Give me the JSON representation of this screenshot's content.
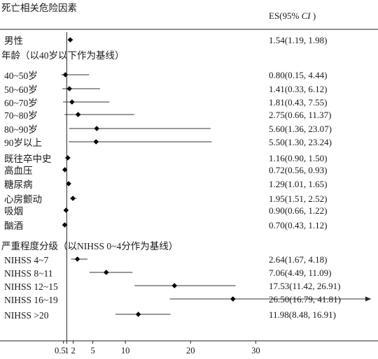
{
  "chart_data": {
    "type": "forest",
    "title": "死亡相关危险因素",
    "effect_header": {
      "prefix": "ES(95% ",
      "italic": "CI",
      "suffix": " )"
    },
    "reference_value": 1,
    "xlim": [
      0,
      32
    ],
    "x_ticks": [
      {
        "value": 0.5,
        "label": "0.5"
      },
      {
        "value": 1,
        "label": "1"
      },
      {
        "value": 2,
        "label": "2"
      },
      {
        "value": 5,
        "label": "5"
      },
      {
        "value": 10,
        "label": "10"
      },
      {
        "value": 20,
        "label": "20"
      },
      {
        "value": 30,
        "label": "30"
      }
    ],
    "rows": [
      {
        "kind": "item",
        "label": "男性",
        "es": 1.54,
        "lo": 1.19,
        "hi": 1.98,
        "text": "1.54(1.19, 1.98)"
      },
      {
        "kind": "header",
        "label": "年龄（以40岁以下作为基线）"
      },
      {
        "kind": "item",
        "label": "40~50岁",
        "es": 0.8,
        "lo": 0.15,
        "hi": 4.44,
        "text": "0.80(0.15, 4.44)"
      },
      {
        "kind": "item",
        "label": "50~60岁",
        "es": 1.41,
        "lo": 0.33,
        "hi": 6.12,
        "text": "1.41(0.33, 6.12)"
      },
      {
        "kind": "item",
        "label": "60~70岁",
        "es": 1.81,
        "lo": 0.43,
        "hi": 7.55,
        "text": "1.81(0.43, 7.55)"
      },
      {
        "kind": "item",
        "label": "70~80岁",
        "es": 2.75,
        "lo": 0.66,
        "hi": 11.37,
        "text": "2.75(0.66, 11.37)"
      },
      {
        "kind": "item",
        "label": "80~90岁",
        "es": 5.6,
        "lo": 1.36,
        "hi": 23.07,
        "text": "5.60(1.36, 23.07)"
      },
      {
        "kind": "item",
        "label": "90岁以上",
        "es": 5.5,
        "lo": 1.3,
        "hi": 23.24,
        "text": "5.50(1.30, 23.24)"
      },
      {
        "kind": "item",
        "label": "既往卒中史",
        "es": 1.16,
        "lo": 0.9,
        "hi": 1.5,
        "text": "1.16(0.90, 1.50)"
      },
      {
        "kind": "item",
        "label": "高血压",
        "es": 0.72,
        "lo": 0.56,
        "hi": 0.93,
        "text": "0.72(0.56, 0.93)"
      },
      {
        "kind": "item",
        "label": "糖尿病",
        "es": 1.29,
        "lo": 1.01,
        "hi": 1.65,
        "text": "1.29(1.01, 1.65)"
      },
      {
        "kind": "item",
        "label": "心房颤动",
        "es": 1.95,
        "lo": 1.51,
        "hi": 2.52,
        "text": "1.95(1.51, 2.52)"
      },
      {
        "kind": "item",
        "label": "吸烟",
        "es": 0.9,
        "lo": 0.66,
        "hi": 1.22,
        "text": "0.90(0.66, 1.22)"
      },
      {
        "kind": "item",
        "label": "酗酒",
        "es": 0.7,
        "lo": 0.43,
        "hi": 1.12,
        "text": "0.70(0.43, 1.12)"
      },
      {
        "kind": "header",
        "label": "严重程度分级（以NIHSS 0~4分作为基线）"
      },
      {
        "kind": "item",
        "label": "NIHSS 4~7",
        "es": 2.64,
        "lo": 1.67,
        "hi": 4.18,
        "text": "2.64(1.67, 4.18)"
      },
      {
        "kind": "item",
        "label": "NIHSS 8~11",
        "es": 7.06,
        "lo": 4.49,
        "hi": 11.09,
        "text": "7.06(4.49, 11.09)"
      },
      {
        "kind": "item",
        "label": "NIHSS 12~15",
        "es": 17.53,
        "lo": 11.42,
        "hi": 26.91,
        "text": "17.53(11.42, 26.91)"
      },
      {
        "kind": "item",
        "label": "NIHSS 16~19",
        "es": 26.5,
        "lo": 16.79,
        "hi": 41.81,
        "text": "26.50(16.79, 41.81)",
        "arrow": true
      },
      {
        "kind": "item",
        "label": "NIHSS >20",
        "es": 11.98,
        "lo": 8.48,
        "hi": 16.91,
        "text": "11.98(8.48, 16.91)"
      }
    ]
  }
}
